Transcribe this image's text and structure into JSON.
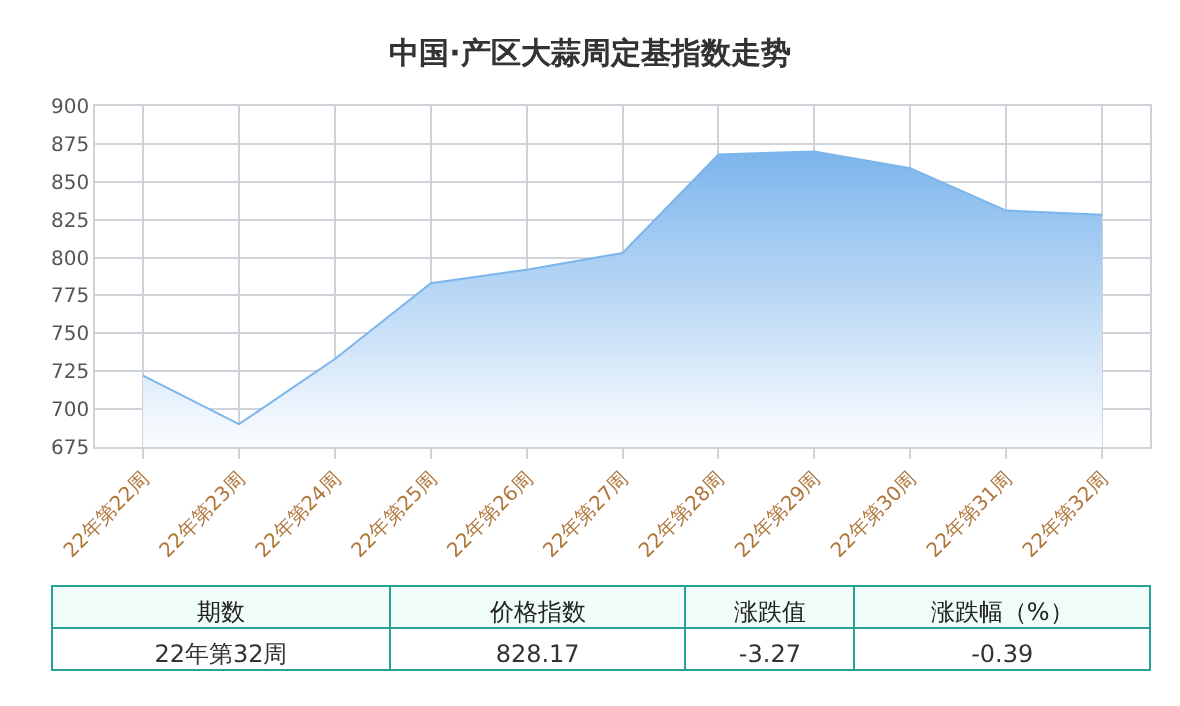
{
  "chart_data": {
    "type": "area",
    "title": "中国·产区大蒜周定基指数走势",
    "categories": [
      "22年第22周",
      "22年第23周",
      "22年第24周",
      "22年第25周",
      "22年第26周",
      "22年第27周",
      "22年第28周",
      "22年第29周",
      "22年第30周",
      "22年第31周",
      "22年第32周"
    ],
    "series": [
      {
        "color": "#7cb5ec",
        "values": [
          722,
          690,
          733,
          783,
          792,
          803,
          868,
          870,
          859,
          831,
          828.17
        ]
      }
    ],
    "ylim": [
      675,
      900
    ],
    "yticks": [
      675,
      700,
      725,
      750,
      775,
      800,
      825,
      850,
      875,
      900
    ],
    "grid": true,
    "marker": "none",
    "annotations": [
      "期数",
      "价格指数",
      "涨跌值",
      "涨跌幅（%）",
      "22年第32周",
      "828.17",
      "-3.27",
      "-0.39"
    ]
  }
}
